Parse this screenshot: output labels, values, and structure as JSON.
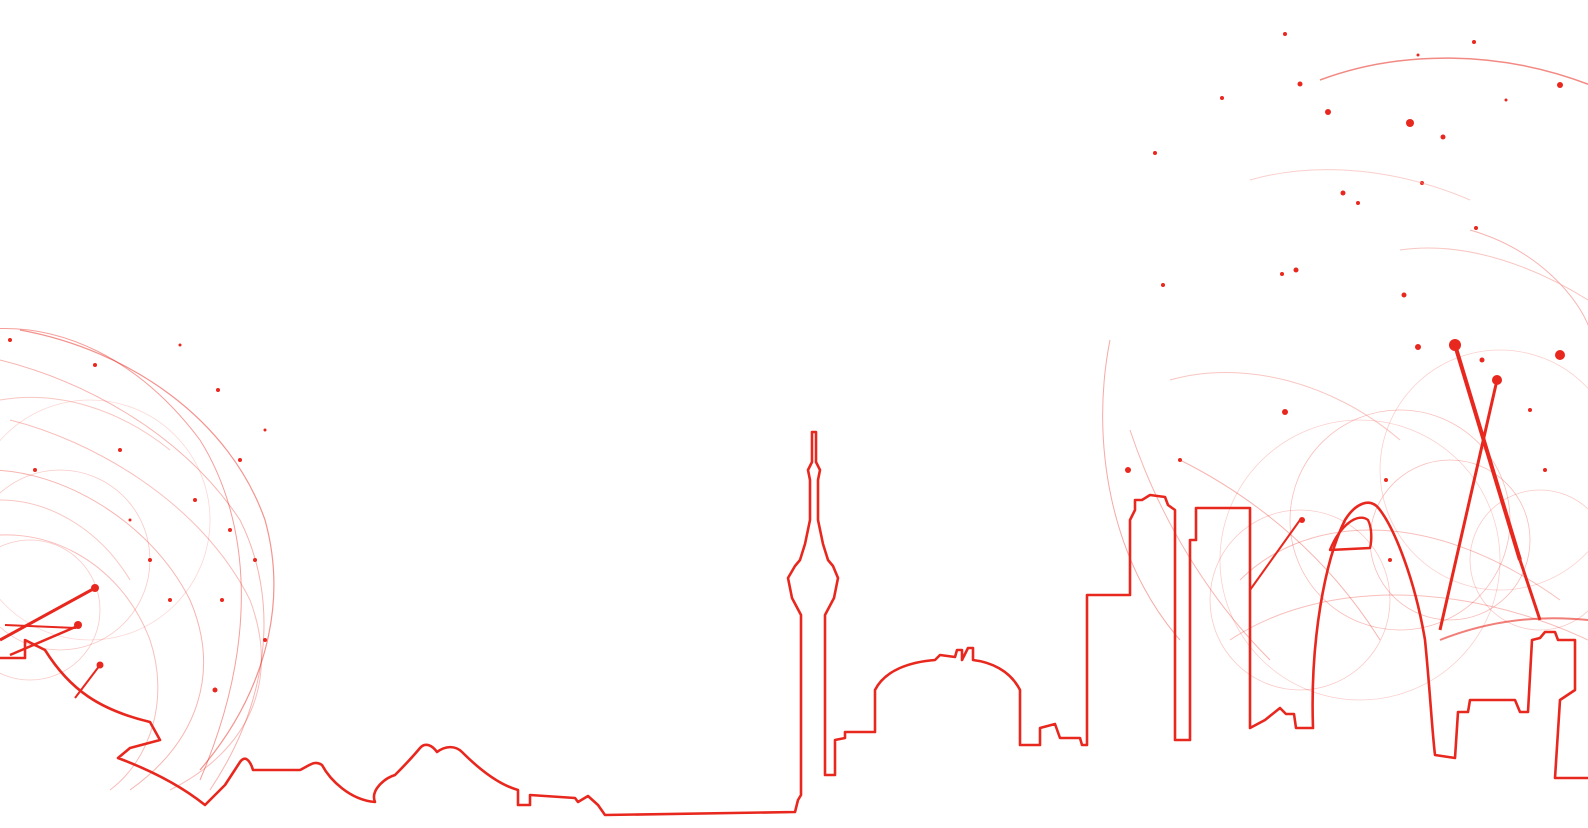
{
  "colors": {
    "background": "#ffffff",
    "accent": "#e8281e",
    "accent_light": "#f4a09a"
  },
  "artwork": {
    "subject": "city-skyline-outline",
    "decoration": "network-arcs-and-dots"
  }
}
